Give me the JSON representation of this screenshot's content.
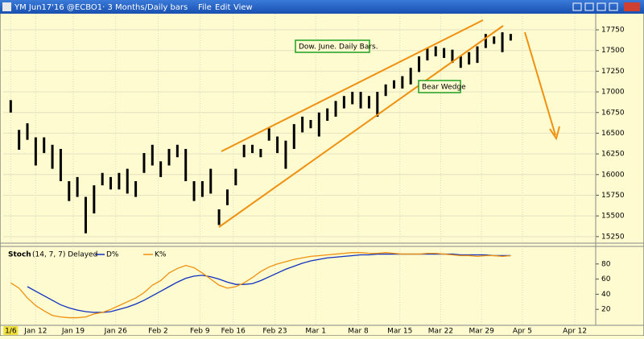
{
  "window": {
    "title": "YM Jun17'16 @ECBO1·  3 Months/Daily bars",
    "menu": [
      "File",
      "Edit",
      "View"
    ]
  },
  "chart_data": [
    {
      "type": "hilo",
      "color": "#000000",
      "annotations": [
        "Dow. June. Daily Bars.",
        "Bear Wedge"
      ],
      "high": [
        16900,
        16540,
        16620,
        16450,
        16450,
        16360,
        16310,
        15920,
        15970,
        15730,
        15870,
        16020,
        15970,
        16020,
        16070,
        15920,
        16260,
        16360,
        16160,
        16310,
        16360,
        16310,
        15920,
        15920,
        16070,
        15580,
        15820,
        16070,
        16360,
        16360,
        16310,
        16560,
        16460,
        16410,
        16610,
        16700,
        16660,
        16750,
        16800,
        16890,
        16950,
        17000,
        17000,
        16950,
        17000,
        17090,
        17140,
        17190,
        17290,
        17430,
        17530,
        17550,
        17530,
        17510,
        17430,
        17480,
        17550,
        17700,
        17670,
        17720,
        17700
      ],
      "low": [
        16750,
        16300,
        16420,
        16110,
        16260,
        16070,
        15920,
        15680,
        15730,
        15290,
        15530,
        15870,
        15820,
        15820,
        15770,
        15730,
        16020,
        16110,
        15970,
        16110,
        16210,
        15920,
        15680,
        15730,
        15770,
        15390,
        15630,
        15870,
        16210,
        16260,
        16210,
        16410,
        16260,
        16070,
        16310,
        16510,
        16560,
        16460,
        16650,
        16700,
        16800,
        16850,
        16800,
        16800,
        16700,
        16950,
        17040,
        17040,
        17090,
        17240,
        17380,
        17430,
        17410,
        17350,
        17290,
        17330,
        17350,
        17530,
        17580,
        17480,
        17620
      ],
      "xlim": [
        -0.9,
        70.2
      ],
      "xticks": [
        {
          "value": 0,
          "label": "1/6"
        },
        {
          "value": 3,
          "label": "Jan 12"
        },
        {
          "value": 7.5,
          "label": "Jan 19"
        },
        {
          "value": 12.6,
          "label": "Jan 26"
        },
        {
          "value": 17.7,
          "label": "Feb 2"
        },
        {
          "value": 22.7,
          "label": "Feb 9"
        },
        {
          "value": 26.7,
          "label": "Feb 16"
        },
        {
          "value": 31.7,
          "label": "Feb 23"
        },
        {
          "value": 36.6,
          "label": "Mar 1"
        },
        {
          "value": 41.7,
          "label": "Mar 8"
        },
        {
          "value": 46.7,
          "label": "Mar 15"
        },
        {
          "value": 51.6,
          "label": "Mar 22"
        },
        {
          "value": 56.5,
          "label": "Mar 29"
        },
        {
          "value": 61.4,
          "label": "Apr 5"
        },
        {
          "value": 67.7,
          "label": "Apr 12"
        }
      ],
      "ylim": [
        15190,
        17945
      ],
      "yticks": [
        15250,
        15500,
        15750,
        16000,
        16250,
        16500,
        16750,
        17000,
        17250,
        17500,
        17750
      ],
      "grid": true
    },
    {
      "type": "line",
      "title": "Stoch",
      "subtitle": "(14, 7, 7) Delayed",
      "series": [
        {
          "name": "D%",
          "color": "#1030c0",
          "values": [
            null,
            null,
            50,
            44,
            38,
            32,
            26,
            22,
            19,
            17,
            16,
            16,
            17,
            20,
            23,
            27,
            32,
            38,
            44,
            50,
            56,
            61,
            64,
            65,
            63,
            60,
            56,
            53,
            53,
            54,
            58,
            63,
            68,
            73,
            77,
            81,
            84,
            86,
            88,
            89,
            90,
            91,
            92,
            92,
            93,
            93,
            93,
            93,
            93,
            93,
            93,
            93,
            93,
            93,
            92,
            92,
            92,
            92,
            91,
            91,
            91
          ]
        },
        {
          "name": "K%",
          "color": "#f09010",
          "values": [
            55,
            48,
            35,
            25,
            18,
            12,
            10,
            9,
            9,
            10,
            14,
            16,
            20,
            25,
            30,
            35,
            42,
            52,
            58,
            68,
            74,
            78,
            75,
            68,
            60,
            52,
            48,
            50,
            55,
            62,
            70,
            76,
            80,
            83,
            86,
            88,
            90,
            91,
            92,
            93,
            94,
            95,
            95,
            94,
            94,
            95,
            94,
            93,
            93,
            93,
            94,
            94,
            93,
            92,
            91,
            91,
            90,
            91,
            91,
            90,
            91
          ]
        }
      ],
      "ylim": [
        0,
        100
      ],
      "yticks": [
        20,
        40,
        60,
        80
      ]
    }
  ]
}
